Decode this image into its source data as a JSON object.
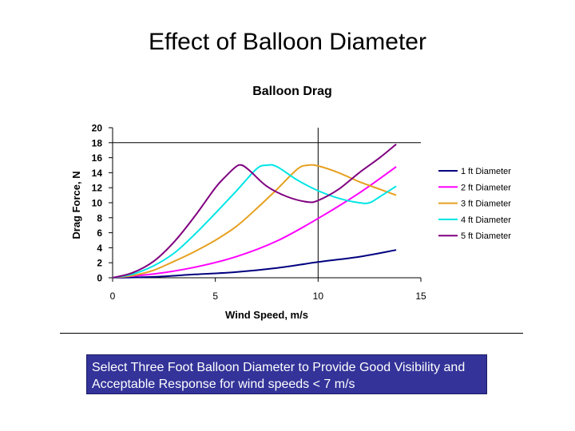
{
  "slide": {
    "title": "Effect of Balloon Diameter",
    "callout": "Select Three Foot Balloon Diameter to Provide Good Visibility and Acceptable Response for wind speeds < 7 m/s"
  },
  "chart_data": {
    "type": "line",
    "title": "Balloon Drag",
    "xlabel": "Wind Speed, m/s",
    "ylabel": "Drag Force, N",
    "xlim": [
      0,
      15
    ],
    "ylim": [
      0,
      20
    ],
    "xticks": [
      0,
      5,
      10,
      15
    ],
    "yticks": [
      0,
      2,
      4,
      6,
      8,
      10,
      12,
      14,
      16,
      18,
      20
    ],
    "grid": false,
    "reference_lines": {
      "x": 10,
      "y": 18
    },
    "legend_position": "right",
    "series": [
      {
        "name": "1 ft Diameter",
        "color": "#000080",
        "x": [
          0,
          2,
          4,
          6,
          8,
          10,
          12,
          13.8
        ],
        "y": [
          0,
          0.12,
          0.45,
          0.75,
          1.3,
          2.1,
          2.8,
          3.7
        ]
      },
      {
        "name": "2 ft Diameter",
        "color": "#ff00ff",
        "x": [
          0,
          2,
          4,
          6,
          8,
          10,
          12,
          13.8
        ],
        "y": [
          0,
          0.5,
          1.4,
          2.8,
          4.9,
          7.9,
          11.3,
          14.8
        ]
      },
      {
        "name": "3 ft Diameter",
        "color": "#e6a020",
        "x": [
          0,
          1,
          2,
          3,
          4,
          5,
          6,
          7,
          8,
          9,
          9.5,
          10,
          11,
          12,
          13,
          13.8
        ],
        "y": [
          0,
          0.3,
          1.0,
          2.2,
          3.5,
          5.0,
          6.8,
          9.2,
          11.8,
          14.5,
          15.0,
          14.9,
          14.0,
          12.8,
          11.8,
          11.0
        ]
      },
      {
        "name": "4 ft Diameter",
        "color": "#00e5e5",
        "x": [
          0,
          1,
          2,
          3,
          4,
          5,
          6,
          7,
          7.5,
          8,
          9,
          10,
          11,
          12,
          12.5,
          13,
          13.8
        ],
        "y": [
          0,
          0.5,
          1.6,
          3.3,
          5.8,
          8.6,
          11.5,
          14.5,
          15.0,
          14.8,
          13.0,
          11.6,
          10.6,
          10.0,
          10.0,
          10.8,
          12.2
        ]
      },
      {
        "name": "5 ft Diameter",
        "color": "#800080",
        "x": [
          0,
          1,
          2,
          3,
          4,
          5,
          5.5,
          6,
          6.3,
          6.7,
          7.5,
          8.5,
          9.5,
          10,
          11,
          12,
          13,
          13.8
        ],
        "y": [
          0,
          0.7,
          2.2,
          4.8,
          8.2,
          12.0,
          13.5,
          14.8,
          15.0,
          14.2,
          12.2,
          10.8,
          10.1,
          10.3,
          11.8,
          14.0,
          16.0,
          17.8
        ]
      }
    ]
  }
}
